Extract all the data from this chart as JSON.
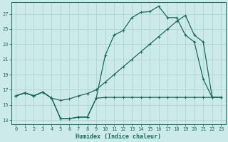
{
  "bg_color": "#cceaea",
  "grid_color": "#b0d4d4",
  "line_color": "#1a6b5a",
  "xlabel": "Humidex (Indice chaleur)",
  "xlim": [
    -0.5,
    23.5
  ],
  "ylim": [
    12.5,
    28.5
  ],
  "yticks": [
    13,
    15,
    17,
    19,
    21,
    23,
    25,
    27
  ],
  "xticks": [
    0,
    1,
    2,
    3,
    4,
    5,
    6,
    7,
    8,
    9,
    10,
    11,
    12,
    13,
    14,
    15,
    16,
    17,
    18,
    19,
    20,
    21,
    22,
    23
  ],
  "line1_x": [
    0,
    1,
    2,
    3,
    4,
    5,
    6,
    7,
    8,
    9,
    10,
    11,
    12,
    13,
    14,
    15,
    16,
    17,
    18,
    19,
    20,
    21,
    22,
    23
  ],
  "line1_y": [
    16.2,
    16.6,
    16.2,
    16.7,
    15.9,
    13.2,
    13.2,
    13.4,
    13.4,
    15.9,
    16.0,
    16.0,
    16.0,
    16.0,
    16.0,
    16.0,
    16.0,
    16.0,
    16.0,
    16.0,
    16.0,
    16.0,
    16.0,
    16.0
  ],
  "line2_x": [
    0,
    1,
    2,
    3,
    4,
    5,
    6,
    7,
    8,
    9,
    10,
    11,
    12,
    13,
    14,
    15,
    16,
    17,
    18,
    19,
    20,
    21,
    22,
    23
  ],
  "line2_y": [
    16.2,
    16.6,
    16.2,
    16.7,
    15.9,
    13.2,
    13.2,
    13.4,
    13.4,
    15.9,
    21.5,
    24.2,
    24.8,
    26.5,
    27.2,
    27.3,
    28.0,
    26.5,
    26.5,
    24.2,
    23.3,
    18.4,
    16.0,
    16.0
  ],
  "line3_x": [
    0,
    1,
    2,
    3,
    4,
    5,
    6,
    7,
    8,
    9,
    10,
    11,
    12,
    13,
    14,
    15,
    16,
    17,
    18,
    19,
    20,
    21,
    22,
    23
  ],
  "line3_y": [
    16.2,
    16.6,
    16.2,
    16.7,
    15.9,
    15.6,
    15.8,
    16.2,
    16.5,
    17.0,
    18.0,
    19.0,
    20.0,
    21.0,
    22.0,
    23.0,
    24.0,
    25.0,
    26.0,
    26.8,
    24.2,
    23.3,
    16.0,
    16.0
  ]
}
